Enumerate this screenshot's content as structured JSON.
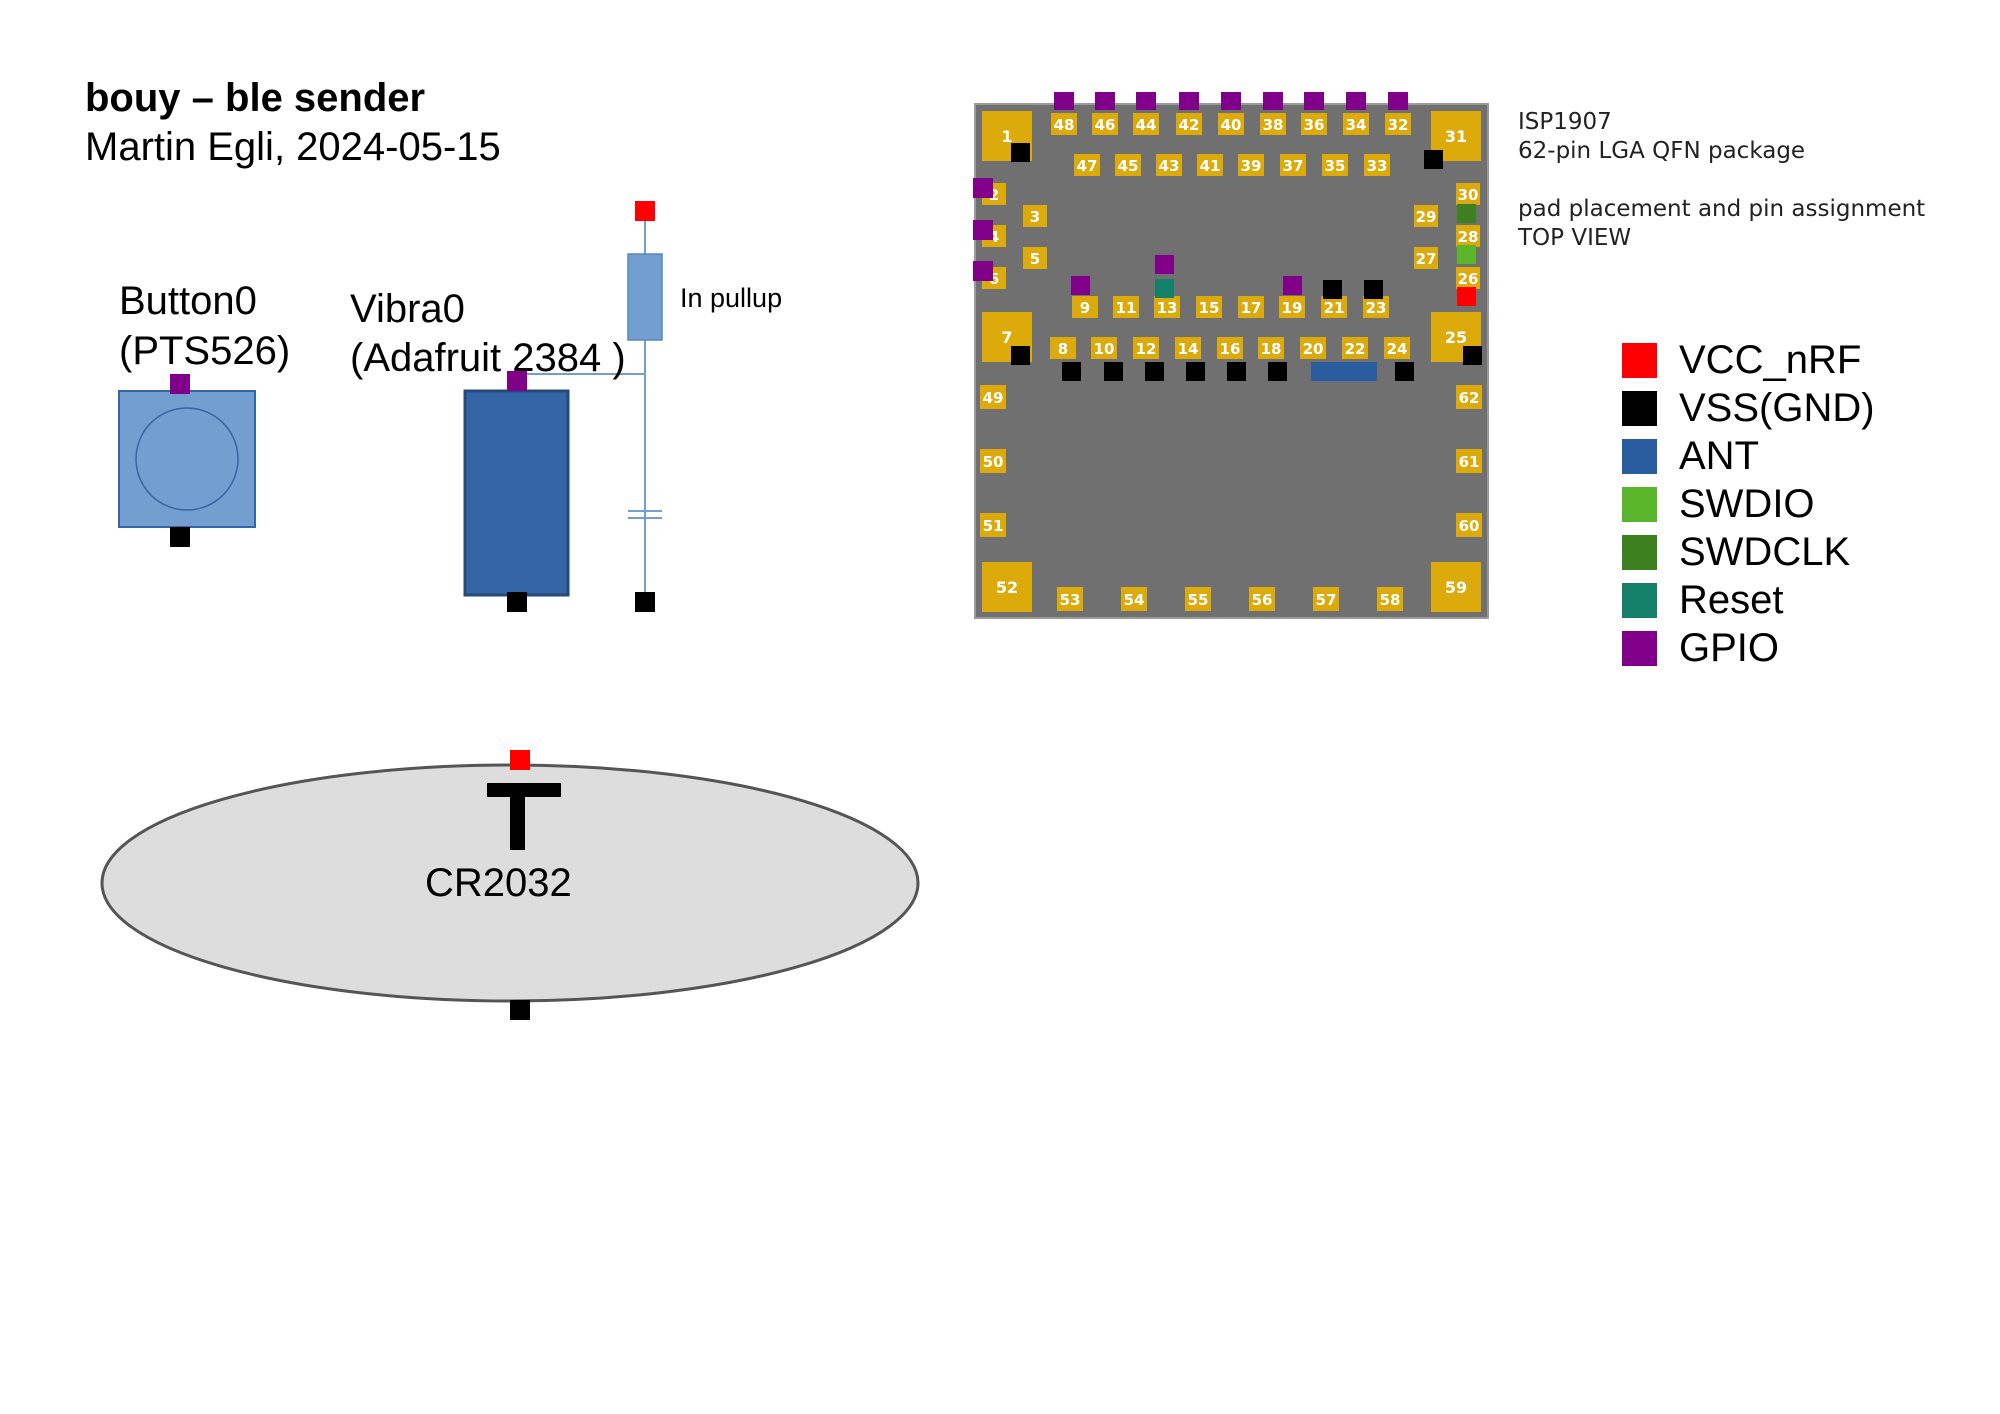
{
  "header": {
    "title": "bouy – ble sender",
    "author": "Martin Egli, 2024-05-15"
  },
  "button0": {
    "line1": "Button0",
    "line2": "(PTS526)"
  },
  "vibra0": {
    "line1": "Vibra0",
    "line2": "(Adafruit 2384 )"
  },
  "pullup": {
    "label": "In pullup"
  },
  "battery": {
    "label": "CR2032",
    "plus": "+"
  },
  "chip": {
    "line1": "ISP1907",
    "line2": "62-pin LGA QFN package",
    "line3": "pad placement and pin assignment",
    "line4": "TOP VIEW",
    "pad_numbers": [
      "1",
      "2",
      "3",
      "4",
      "5",
      "6",
      "7",
      "8",
      "9",
      "10",
      "11",
      "12",
      "13",
      "14",
      "15",
      "16",
      "17",
      "18",
      "19",
      "20",
      "21",
      "22",
      "23",
      "24",
      "25",
      "26",
      "27",
      "28",
      "29",
      "30",
      "31",
      "32",
      "33",
      "34",
      "35",
      "36",
      "37",
      "38",
      "39",
      "40",
      "41",
      "42",
      "43",
      "44",
      "45",
      "46",
      "47",
      "48",
      "49",
      "50",
      "51",
      "52",
      "53",
      "54",
      "55",
      "56",
      "57",
      "58",
      "59",
      "60",
      "61",
      "62"
    ]
  },
  "legend": [
    {
      "label": "VCC_nRF",
      "color": "#ff0000"
    },
    {
      "label": "VSS(GND)",
      "color": "#000000"
    },
    {
      "label": "ANT",
      "color": "#2a5d9f"
    },
    {
      "label": "SWDIO",
      "color": "#5ab52a"
    },
    {
      "label": "SWDCLK",
      "color": "#3d8020"
    },
    {
      "label": "Reset",
      "color": "#14806a"
    },
    {
      "label": "GPIO",
      "color": "#80008a"
    }
  ],
  "colors": {
    "pad": "#dcaa0a",
    "chip_body": "#707070",
    "button_body": "#729fcf",
    "vibra_body": "#3465a4",
    "battery_body": "#dddddd"
  }
}
